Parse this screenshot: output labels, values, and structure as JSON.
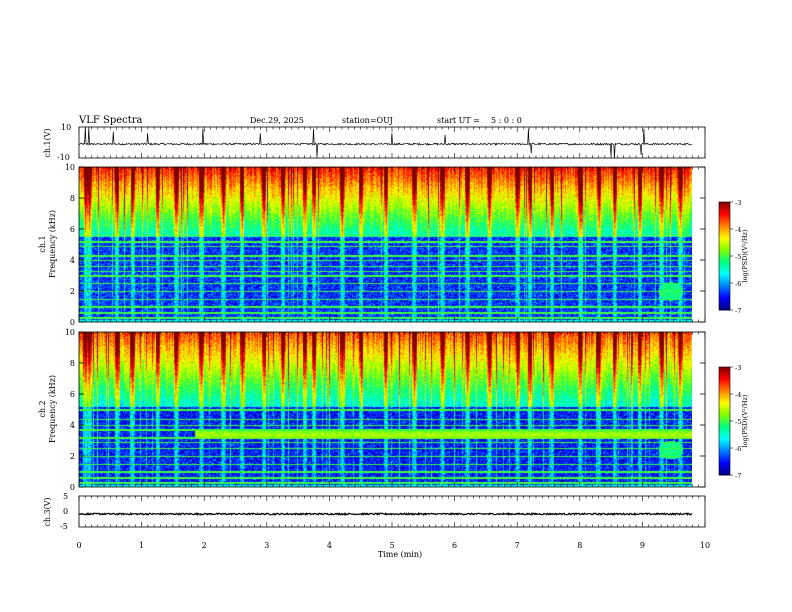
{
  "header": {
    "title": "VLF Spectra",
    "date": "Dec.29, 2025",
    "station": "station=OUJ",
    "start_label": "start  UT =",
    "start_time": "5 : 0  : 0"
  },
  "chart_data": [
    {
      "type": "line",
      "name": "ch1-waveform",
      "ylabel": "ch.1(V)",
      "ylim": [
        -10,
        10
      ],
      "yticks": [
        "10",
        "-10"
      ],
      "baseline": -1,
      "noise_amplitude": 0.6,
      "spikes": [
        {
          "t": 0.1,
          "v": 10
        },
        {
          "t": 0.16,
          "v": 10
        },
        {
          "t": 0.55,
          "v": 7
        },
        {
          "t": 1.1,
          "v": 6
        },
        {
          "t": 1.98,
          "v": 9
        },
        {
          "t": 2.9,
          "v": 6
        },
        {
          "t": 3.75,
          "v": 9
        },
        {
          "t": 3.8,
          "v": -9
        },
        {
          "t": 5.0,
          "v": 6
        },
        {
          "t": 5.85,
          "v": 5
        },
        {
          "t": 7.18,
          "v": 9
        },
        {
          "t": 7.22,
          "v": -7
        },
        {
          "t": 8.5,
          "v": -9
        },
        {
          "t": 8.55,
          "v": -10
        },
        {
          "t": 8.98,
          "v": -8
        },
        {
          "t": 9.02,
          "v": 9
        }
      ]
    },
    {
      "type": "heatmap",
      "name": "ch1-spectrogram",
      "ylabel": "ch.1\nFrequency  (kHz)",
      "ylabel_lines": [
        "ch.1",
        "Frequency  (kHz)"
      ],
      "ylim": [
        0,
        10
      ],
      "yticks": [
        "0",
        "2",
        "4",
        "6",
        "8",
        "10"
      ],
      "data_tmax_min": 9.8,
      "quiet_cutoff_khz": 5.5,
      "high_band_level": -4.8,
      "low_band_level": -6.4,
      "hiss_band_khz": [
        5.5,
        10
      ],
      "spike_minutes": [
        0.1,
        0.16,
        0.6,
        0.85,
        1.25,
        1.55,
        1.95,
        2.3,
        2.6,
        2.95,
        3.25,
        3.6,
        3.75,
        4.2,
        4.5,
        4.9,
        5.35,
        5.8,
        6.2,
        6.55,
        7.0,
        7.2,
        7.55,
        8.0,
        8.3,
        8.55,
        8.95,
        9.3,
        9.6
      ],
      "line_freqs_khz": [
        0.3,
        0.6,
        1.0,
        1.5,
        2.0,
        2.5,
        3.0,
        3.3,
        3.6,
        4.0,
        4.3,
        4.9,
        5.2,
        5.6
      ],
      "blob": {
        "t": 9.45,
        "f": 2.0,
        "level": -5.2
      }
    },
    {
      "type": "heatmap",
      "name": "ch2-spectrogram",
      "ylabel_lines": [
        "ch.2",
        "Frequency  (kHz)"
      ],
      "ylim": [
        0,
        10
      ],
      "yticks": [
        "0",
        "2",
        "4",
        "6",
        "8",
        "10"
      ],
      "data_tmax_min": 9.8,
      "quiet_cutoff_khz": 5.2,
      "high_band_level": -5.0,
      "low_band_level": -6.5,
      "emission_band": {
        "f": 3.4,
        "t_start": 1.85,
        "level": -4.6
      },
      "hiss_band_khz": [
        5.2,
        10
      ],
      "spike_minutes": [
        0.1,
        0.16,
        0.6,
        0.85,
        1.25,
        1.55,
        1.95,
        2.3,
        2.6,
        2.95,
        3.25,
        3.6,
        3.75,
        4.2,
        4.5,
        4.9,
        5.35,
        5.8,
        6.2,
        6.55,
        7.0,
        7.2,
        7.55,
        8.0,
        8.3,
        8.55,
        8.95,
        9.3,
        9.6
      ],
      "line_freqs_khz": [
        0.3,
        0.6,
        1.0,
        1.5,
        2.0,
        2.5,
        2.9,
        3.2,
        3.7,
        4.0,
        4.4,
        5.0
      ],
      "blob": {
        "t": 9.45,
        "f": 2.4,
        "level": -5.2
      }
    },
    {
      "type": "line",
      "name": "ch3-waveform",
      "ylabel": "ch.3(V)",
      "ylim": [
        -5,
        5
      ],
      "yticks": [
        "5",
        "0",
        "-5"
      ],
      "baseline": -0.8,
      "noise_amplitude": 0.25
    }
  ],
  "xaxis": {
    "label": "Time  (min)",
    "range": [
      0,
      10
    ],
    "ticks": [
      "0",
      "1",
      "2",
      "3",
      "4",
      "5",
      "6",
      "7",
      "8",
      "9",
      "10"
    ]
  },
  "colorbar": {
    "label": "log(PSD)(V²/Hz)",
    "range": [
      -7,
      -3
    ],
    "ticks": [
      "-3",
      "-4",
      "-5",
      "-6",
      "-7"
    ]
  },
  "colors": {
    "scale": [
      "#000080",
      "#0000ff",
      "#0080ff",
      "#00ffff",
      "#00ff80",
      "#80ff00",
      "#ffff00",
      "#ff8000",
      "#ff0000",
      "#800000"
    ]
  }
}
